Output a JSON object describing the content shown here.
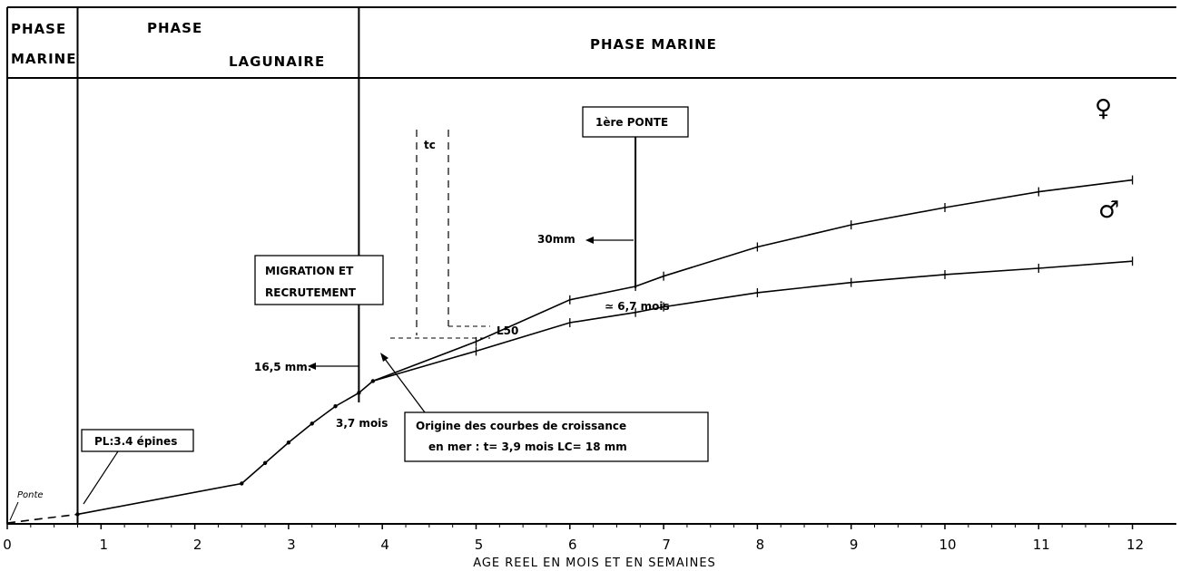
{
  "chart_data": {
    "type": "line",
    "xlabel": "AGE REEL EN MOIS ET EN SEMAINES",
    "xlim": [
      0,
      12.6
    ],
    "x_ticks": [
      "0",
      "1",
      "2",
      "3",
      "4",
      "5",
      "6",
      "7",
      "8",
      "9",
      "10",
      "11",
      "12"
    ],
    "phases": [
      {
        "lines": [
          "PHASE",
          "MARINE"
        ]
      },
      {
        "lines": [
          "PHASE",
          "LAGUNAIRE"
        ]
      },
      {
        "lines": [
          "PHASE  MARINE"
        ]
      }
    ],
    "phase_bounds_months": [
      0.75,
      3.75
    ],
    "series": [
      {
        "name": "",
        "segment": "ponte",
        "style": "dashed",
        "points": [
          [
            0,
            0
          ],
          [
            0.75,
            1.1
          ]
        ]
      },
      {
        "name": "",
        "segment": "lagunaire",
        "points": [
          [
            0.75,
            1.1
          ],
          [
            2.5,
            5.0
          ],
          [
            2.75,
            7.6
          ],
          [
            3.0,
            10.2
          ],
          [
            3.25,
            12.6
          ],
          [
            3.5,
            14.8
          ],
          [
            3.75,
            16.5
          ],
          [
            3.9,
            18.0
          ]
        ]
      },
      {
        "name": "♀",
        "segment": "marine",
        "points": [
          [
            3.9,
            18.0
          ],
          [
            5.0,
            23.0
          ],
          [
            6.0,
            28.3
          ],
          [
            6.7,
            30.0
          ],
          [
            7.0,
            31.3
          ],
          [
            8.0,
            35.0
          ],
          [
            9.0,
            37.8
          ],
          [
            10.0,
            40.0
          ],
          [
            11.0,
            42.0
          ],
          [
            12.0,
            43.5
          ]
        ]
      },
      {
        "name": "♂",
        "segment": "marine",
        "points": [
          [
            3.9,
            18.0
          ],
          [
            5.0,
            21.8
          ],
          [
            6.0,
            25.4
          ],
          [
            6.7,
            26.7
          ],
          [
            7.0,
            27.4
          ],
          [
            8.0,
            29.2
          ],
          [
            9.0,
            30.5
          ],
          [
            10.0,
            31.5
          ],
          [
            11.0,
            32.3
          ],
          [
            12.0,
            33.2
          ]
        ]
      }
    ],
    "annotations": {
      "ponte": "Ponte",
      "pl": "PL:3.4 épines",
      "migration": [
        "MIGRATION  ET",
        "RECRUTEMENT"
      ],
      "migration_age": "3,7 mois",
      "size_165": "16,5 mm.",
      "tc": "tc",
      "l50": "L50",
      "ponte1": "1ère PONTE",
      "size_30": "30mm",
      "age_67": "≃ 6,7 mois",
      "origine": [
        "Origine  des  courbes  de  croissance",
        "en  mer :   t= 3,9 mois      LC= 18 mm"
      ]
    }
  }
}
